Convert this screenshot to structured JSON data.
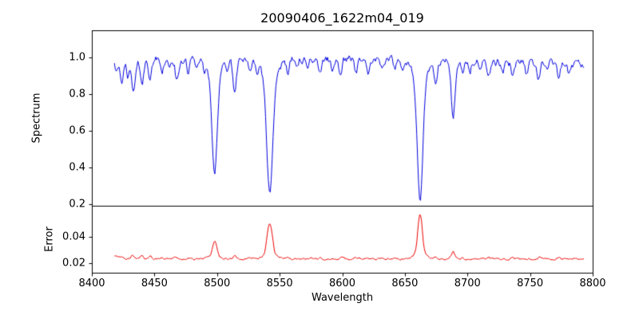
{
  "figure": {
    "background": "#ffffff"
  },
  "chart_data": [
    {
      "type": "line",
      "name": "spectrum-panel",
      "title": "20090406_1622m04_019",
      "ylabel": "Spectrum",
      "series_color": "#0000dd",
      "xlim": [
        8400,
        8800
      ],
      "ylim": [
        0.19,
        1.15
      ],
      "yticks": [
        {
          "value": 0.2,
          "label": "0.2"
        },
        {
          "value": 0.4,
          "label": "0.4"
        },
        {
          "value": 0.6,
          "label": "0.6"
        },
        {
          "value": 0.8,
          "label": "0.8"
        },
        {
          "value": 1.0,
          "label": "1.0"
        }
      ],
      "data_x_range": [
        8418,
        8793,
        0.75
      ],
      "continuum": 0.98,
      "continuum_wave_amplitude": 0.012,
      "noise_amplitude": 0.032,
      "absorption_lines": [
        {
          "center": 8419.5,
          "depth": 0.05,
          "sigma": 1.0
        },
        {
          "center": 8424.0,
          "depth": 0.11,
          "sigma": 1.2
        },
        {
          "center": 8428.5,
          "depth": 0.09,
          "sigma": 1.0
        },
        {
          "center": 8433.0,
          "depth": 0.17,
          "sigma": 1.4
        },
        {
          "center": 8440.0,
          "depth": 0.14,
          "sigma": 1.3
        },
        {
          "center": 8446.5,
          "depth": 0.11,
          "sigma": 1.2
        },
        {
          "center": 8456.0,
          "depth": 0.07,
          "sigma": 1.0
        },
        {
          "center": 8462.0,
          "depth": 0.06,
          "sigma": 1.0
        },
        {
          "center": 8468.0,
          "depth": 0.12,
          "sigma": 1.3
        },
        {
          "center": 8477.0,
          "depth": 0.07,
          "sigma": 1.0
        },
        {
          "center": 8484.0,
          "depth": 0.05,
          "sigma": 1.0
        },
        {
          "center": 8490.0,
          "depth": 0.05,
          "sigma": 1.0
        },
        {
          "center": 8498.02,
          "depth": 0.55,
          "sigma": 2.1
        },
        {
          "center": 8498.02,
          "depth": 0.08,
          "sigma": 5.0
        },
        {
          "center": 8508.0,
          "depth": 0.06,
          "sigma": 1.0
        },
        {
          "center": 8514.1,
          "depth": 0.18,
          "sigma": 1.4
        },
        {
          "center": 8526.0,
          "depth": 0.06,
          "sigma": 1.0
        },
        {
          "center": 8532.0,
          "depth": 0.05,
          "sigma": 1.0
        },
        {
          "center": 8542.09,
          "depth": 0.64,
          "sigma": 2.4
        },
        {
          "center": 8542.09,
          "depth": 0.1,
          "sigma": 6.0
        },
        {
          "center": 8556.8,
          "depth": 0.08,
          "sigma": 1.1
        },
        {
          "center": 8564.0,
          "depth": 0.05,
          "sigma": 1.0
        },
        {
          "center": 8572.0,
          "depth": 0.05,
          "sigma": 1.0
        },
        {
          "center": 8582.3,
          "depth": 0.07,
          "sigma": 1.1
        },
        {
          "center": 8592.0,
          "depth": 0.06,
          "sigma": 1.0
        },
        {
          "center": 8598.8,
          "depth": 0.09,
          "sigma": 1.1
        },
        {
          "center": 8611.0,
          "depth": 0.08,
          "sigma": 1.1
        },
        {
          "center": 8621.0,
          "depth": 0.06,
          "sigma": 1.0
        },
        {
          "center": 8632.0,
          "depth": 0.05,
          "sigma": 1.0
        },
        {
          "center": 8642.0,
          "depth": 0.04,
          "sigma": 1.0
        },
        {
          "center": 8648.0,
          "depth": 0.05,
          "sigma": 1.0
        },
        {
          "center": 8662.14,
          "depth": 0.68,
          "sigma": 2.2
        },
        {
          "center": 8662.14,
          "depth": 0.1,
          "sigma": 5.5
        },
        {
          "center": 8674.7,
          "depth": 0.11,
          "sigma": 1.2
        },
        {
          "center": 8688.6,
          "depth": 0.32,
          "sigma": 1.5
        },
        {
          "center": 8696.0,
          "depth": 0.05,
          "sigma": 1.0
        },
        {
          "center": 8702.0,
          "depth": 0.07,
          "sigma": 1.0
        },
        {
          "center": 8710.4,
          "depth": 0.06,
          "sigma": 1.0
        },
        {
          "center": 8717.0,
          "depth": 0.08,
          "sigma": 1.1
        },
        {
          "center": 8728.0,
          "depth": 0.05,
          "sigma": 1.0
        },
        {
          "center": 8736.0,
          "depth": 0.07,
          "sigma": 1.1
        },
        {
          "center": 8747.0,
          "depth": 0.06,
          "sigma": 1.0
        },
        {
          "center": 8757.0,
          "depth": 0.09,
          "sigma": 1.1
        },
        {
          "center": 8764.0,
          "depth": 0.06,
          "sigma": 1.0
        },
        {
          "center": 8773.0,
          "depth": 0.1,
          "sigma": 1.2
        },
        {
          "center": 8781.0,
          "depth": 0.06,
          "sigma": 1.0
        }
      ]
    },
    {
      "type": "line",
      "name": "error-panel",
      "ylabel": "Error",
      "xlabel": "Wavelength",
      "series_color": "#ee0000",
      "xlim": [
        8400,
        8800
      ],
      "ylim": [
        0.013,
        0.0635
      ],
      "yticks": [
        {
          "value": 0.02,
          "label": "0.02"
        },
        {
          "value": 0.04,
          "label": "0.04"
        }
      ],
      "xticks": [
        {
          "value": 8400,
          "label": "8400"
        },
        {
          "value": 8450,
          "label": "8450"
        },
        {
          "value": 8500,
          "label": "8500"
        },
        {
          "value": 8550,
          "label": "8550"
        },
        {
          "value": 8600,
          "label": "8600"
        },
        {
          "value": 8650,
          "label": "8650"
        },
        {
          "value": 8700,
          "label": "8700"
        },
        {
          "value": 8750,
          "label": "8750"
        },
        {
          "value": 8800,
          "label": "8800"
        }
      ],
      "baseline": 0.0235,
      "noise_amplitude": 0.0012,
      "peaks": [
        {
          "center": 8419.0,
          "height": 0.002,
          "sigma": 1.5
        },
        {
          "center": 8424.0,
          "height": 0.0018,
          "sigma": 1.3
        },
        {
          "center": 8433.0,
          "height": 0.0025,
          "sigma": 1.5
        },
        {
          "center": 8440.0,
          "height": 0.002,
          "sigma": 1.3
        },
        {
          "center": 8447.0,
          "height": 0.0015,
          "sigma": 1.2
        },
        {
          "center": 8468.0,
          "height": 0.0015,
          "sigma": 1.2
        },
        {
          "center": 8477.0,
          "height": 0.001,
          "sigma": 1.0
        },
        {
          "center": 8498.02,
          "height": 0.0115,
          "sigma": 1.6
        },
        {
          "center": 8498.02,
          "height": 0.002,
          "sigma": 4.0
        },
        {
          "center": 8514.1,
          "height": 0.003,
          "sigma": 1.2
        },
        {
          "center": 8542.09,
          "height": 0.024,
          "sigma": 1.9
        },
        {
          "center": 8542.09,
          "height": 0.004,
          "sigma": 5.0
        },
        {
          "center": 8556.8,
          "height": 0.0012,
          "sigma": 1.0
        },
        {
          "center": 8582.0,
          "height": 0.001,
          "sigma": 1.0
        },
        {
          "center": 8598.8,
          "height": 0.0012,
          "sigma": 1.0
        },
        {
          "center": 8611.0,
          "height": 0.001,
          "sigma": 1.0
        },
        {
          "center": 8662.14,
          "height": 0.031,
          "sigma": 1.7
        },
        {
          "center": 8662.14,
          "height": 0.004,
          "sigma": 4.5
        },
        {
          "center": 8674.7,
          "height": 0.0018,
          "sigma": 1.1
        },
        {
          "center": 8688.6,
          "height": 0.005,
          "sigma": 1.3
        },
        {
          "center": 8717.0,
          "height": 0.001,
          "sigma": 1.0
        },
        {
          "center": 8736.0,
          "height": 0.0012,
          "sigma": 1.0
        },
        {
          "center": 8757.0,
          "height": 0.0012,
          "sigma": 1.0
        },
        {
          "center": 8773.0,
          "height": 0.0015,
          "sigma": 1.1
        }
      ]
    }
  ]
}
